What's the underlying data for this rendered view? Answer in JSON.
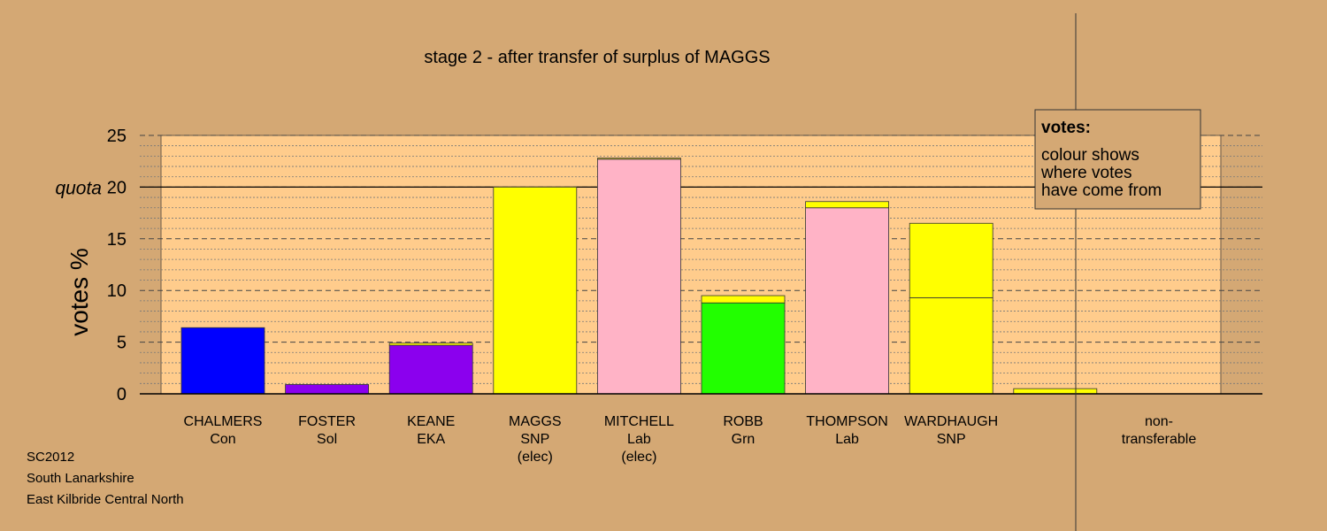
{
  "chart_data": {
    "type": "bar",
    "title": "stage 2 - after transfer of surplus of MAGGS",
    "ylabel": "votes %",
    "ylim": [
      0,
      25
    ],
    "yticks": [
      0,
      5,
      10,
      15,
      20,
      25
    ],
    "quota": {
      "value": 20,
      "label": "quota"
    },
    "grid": "dashed major every 5, dotted minor every 1",
    "categories": [
      {
        "name": "CHALMERS",
        "party": "Con",
        "note": ""
      },
      {
        "name": "FOSTER",
        "party": "Sol",
        "note": ""
      },
      {
        "name": "KEANE",
        "party": "EKA",
        "note": ""
      },
      {
        "name": "MAGGS",
        "party": "SNP",
        "note": "(elec)"
      },
      {
        "name": "MITCHELL",
        "party": "Lab",
        "note": "(elec)"
      },
      {
        "name": "ROBB",
        "party": "Grn",
        "note": ""
      },
      {
        "name": "THOMPSON",
        "party": "Lab",
        "note": ""
      },
      {
        "name": "WARDHAUGH",
        "party": "SNP",
        "note": ""
      },
      {
        "name": "non-",
        "party": "transferable",
        "note": ""
      }
    ],
    "stacks": [
      [
        {
          "value": 6.4,
          "color": "#0000ff"
        }
      ],
      [
        {
          "value": 0.9,
          "color": "#8b00ee"
        }
      ],
      [
        {
          "value": 4.7,
          "color": "#8b00ee"
        },
        {
          "value": 0.2,
          "color": "#ffff00"
        }
      ],
      [
        {
          "value": 20.0,
          "color": "#ffff00"
        }
      ],
      [
        {
          "value": 22.7,
          "color": "#ffb3c6"
        },
        {
          "value": 0.1,
          "color": "#ffff00"
        }
      ],
      [
        {
          "value": 8.8,
          "color": "#22ff00"
        },
        {
          "value": 0.7,
          "color": "#ffff00"
        }
      ],
      [
        {
          "value": 18.0,
          "color": "#ffb3c6"
        },
        {
          "value": 0.6,
          "color": "#ffff00"
        }
      ],
      [
        {
          "value": 9.3,
          "color": "#ffff00"
        },
        {
          "value": 7.2,
          "color": "#ffff00"
        }
      ],
      [
        {
          "value": 0.5,
          "color": "#ffff00"
        }
      ]
    ],
    "legend": {
      "title": "votes:",
      "lines": [
        "colour shows",
        "where votes",
        "have come from"
      ],
      "placement": "top-right"
    }
  },
  "footer": {
    "line1": "SC2012",
    "line2": "South Lanarkshire",
    "line3": "East Kilbride Central North"
  },
  "colors": {
    "background": "#d4a874",
    "plot_area": "#ffcc8c",
    "axis": "#000000"
  }
}
